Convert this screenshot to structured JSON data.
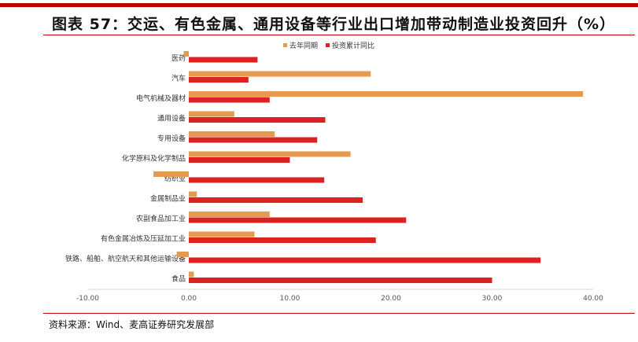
{
  "title": "图表 57：交运、有色金属、通用设备等行业出口增加带动制造业投资回升（%）",
  "source": "资料来源：Wind、麦高证券研究发展部",
  "chart_data": {
    "type": "bar",
    "orientation": "horizontal",
    "categories": [
      "医药",
      "汽车",
      "电气机械及器材",
      "通用设备",
      "专用设备",
      "化学原料及化学制品",
      "纺织业",
      "金属制品业",
      "农副食品加工业",
      "有色金属冶炼及压延加工业",
      "铁路、船舶、航空航天和其他运输设备",
      "食品"
    ],
    "series": [
      {
        "name": "去年同期",
        "color": "#e59a4f",
        "values": [
          -0.5,
          18.0,
          39.0,
          4.5,
          8.5,
          16.0,
          -3.5,
          0.8,
          8.0,
          6.5,
          -1.2,
          0.5
        ]
      },
      {
        "name": "投资累计同比",
        "color": "#dd2020",
        "values": [
          6.8,
          5.9,
          8.0,
          13.5,
          12.7,
          10.0,
          13.4,
          17.2,
          21.5,
          18.5,
          34.8,
          30.0
        ]
      }
    ],
    "xlim": [
      -10,
      40
    ],
    "xticks": [
      "-10.00",
      "0.00",
      "10.00",
      "20.00",
      "30.00",
      "40.00"
    ],
    "xtick_values": [
      -10,
      0,
      10,
      20,
      30,
      40
    ],
    "legend_position": "top-center",
    "grid": false
  }
}
